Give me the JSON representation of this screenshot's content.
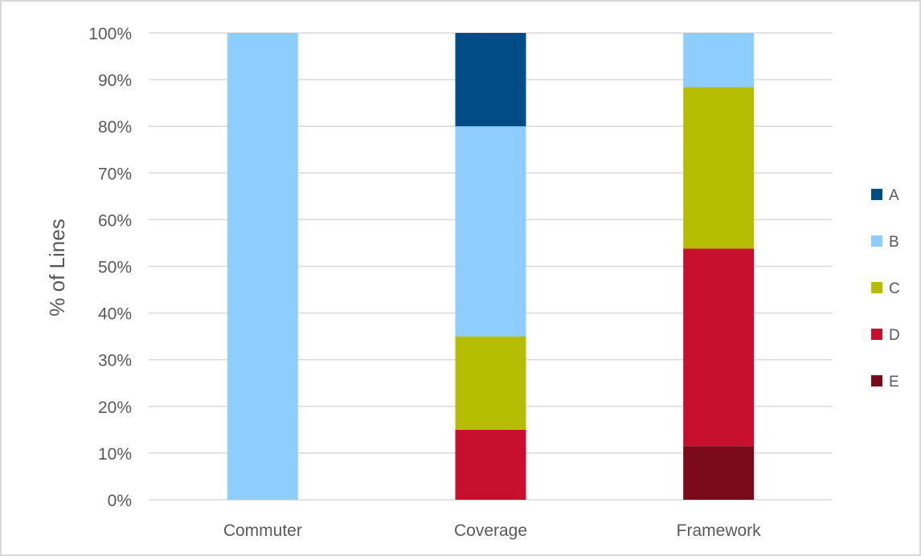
{
  "chart_data": {
    "type": "bar",
    "stacked": true,
    "percent_stacked": true,
    "title": "",
    "xlabel": "",
    "ylabel": "% of Lines",
    "ylim": [
      0,
      100
    ],
    "ytick_step": 10,
    "ytick_suffix": "%",
    "grid": true,
    "legend_position": "right",
    "categories": [
      "Commuter",
      "Coverage",
      "Framework"
    ],
    "series": [
      {
        "name": "E",
        "color": "#7a0a1a",
        "values": [
          0,
          0,
          11.5
        ]
      },
      {
        "name": "D",
        "color": "#c8102e",
        "values": [
          0,
          15,
          42.3
        ]
      },
      {
        "name": "C",
        "color": "#b5bd00",
        "values": [
          0,
          20,
          34.6
        ]
      },
      {
        "name": "B",
        "color": "#8ecdff",
        "values": [
          100,
          45,
          11.6
        ]
      },
      {
        "name": "A",
        "color": "#004c87",
        "values": [
          0,
          20,
          0
        ]
      }
    ],
    "legend_order": [
      "A",
      "B",
      "C",
      "D",
      "E"
    ]
  }
}
